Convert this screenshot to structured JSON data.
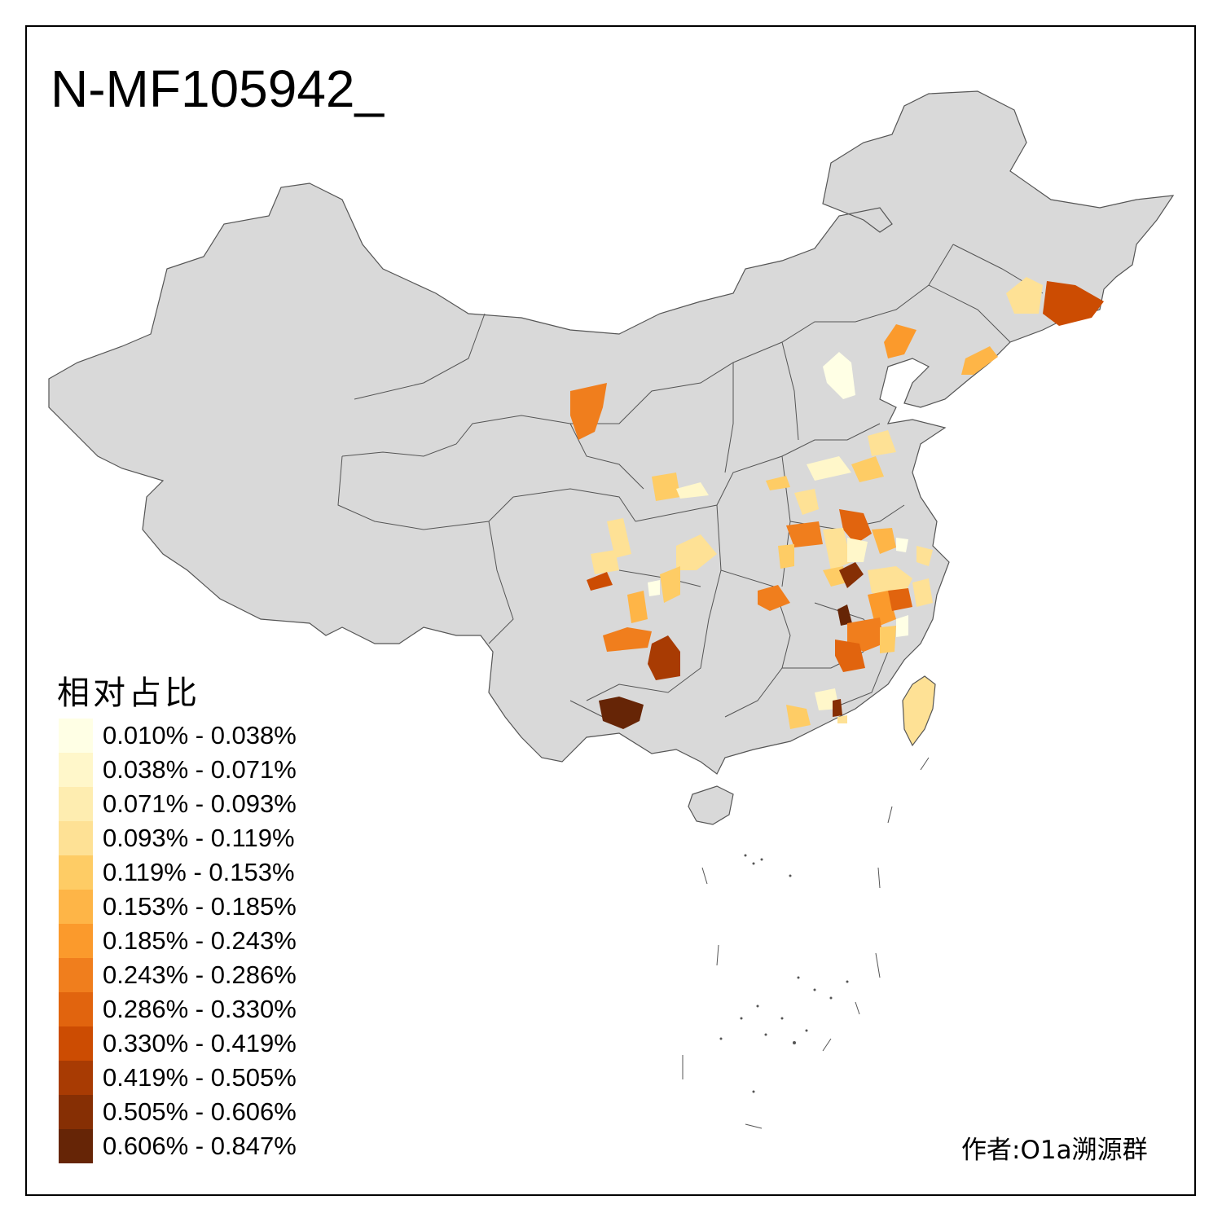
{
  "title": "N-MF105942_",
  "legend": {
    "title": "相对占比",
    "items": [
      {
        "label": "0.010% - 0.038%",
        "color": "#FFFFE5"
      },
      {
        "label": "0.038% - 0.071%",
        "color": "#FFF7CA"
      },
      {
        "label": "0.071% - 0.093%",
        "color": "#FEEDB0"
      },
      {
        "label": "0.093% - 0.119%",
        "color": "#FEE195"
      },
      {
        "label": "0.119% - 0.153%",
        "color": "#FECC65"
      },
      {
        "label": "0.153% - 0.185%",
        "color": "#FEB547"
      },
      {
        "label": "0.185% - 0.243%",
        "color": "#FB9A2C"
      },
      {
        "label": "0.243% - 0.286%",
        "color": "#F07E1D"
      },
      {
        "label": "0.286% - 0.330%",
        "color": "#E1640E"
      },
      {
        "label": "0.330% - 0.419%",
        "color": "#CC4C02"
      },
      {
        "label": "0.419% - 0.505%",
        "color": "#A83B03"
      },
      {
        "label": "0.505% - 0.606%",
        "color": "#862F04"
      },
      {
        "label": "0.606% - 0.847%",
        "color": "#662506"
      }
    ]
  },
  "author": "作者:O1a溯源群",
  "colors": {
    "base": "#D9D9D9",
    "border": "#555555"
  }
}
